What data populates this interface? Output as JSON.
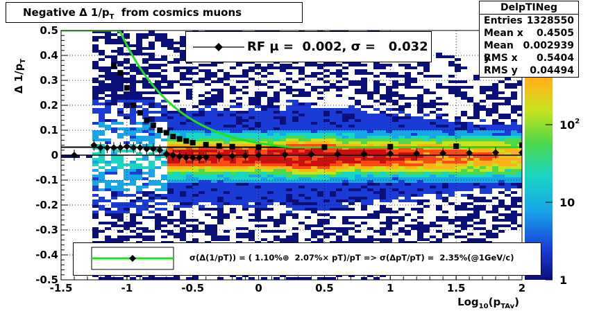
{
  "title": "Negative Δ 1/p_T  from cosmics muons",
  "stats": {
    "name": "DelpTINeg",
    "rows": [
      {
        "label": "Entries",
        "value": "1328550"
      },
      {
        "label": "Mean x",
        "value": "0.4505"
      },
      {
        "label": "Mean y",
        "value": "0.002939"
      },
      {
        "label": "RMS x",
        "value": "0.5404"
      },
      {
        "label": "RMS y",
        "value": "0.04494"
      }
    ]
  },
  "legend_top": "RF μ =  0.002, σ =   0.032",
  "legend_bottom": "σ(Δ(1/pT)) = ( 1.10%⊕  2.07%× pT)/pT => σ(ΔpT/pT) =  2.35%(@1GeV/c)",
  "colors": {
    "fit_curve": "#22dd22",
    "markers": "#000000"
  },
  "chart_data": {
    "type": "heatmap",
    "xlabel": "Log_10(p_TAv)",
    "ylabel": "Δ 1/p_T",
    "xlim": [
      -1.5,
      2
    ],
    "ylim": [
      -0.5,
      0.5
    ],
    "x_ticks": [
      "-1.5",
      "-1",
      "-0.5",
      "0",
      "0.5",
      "1",
      "1.5",
      "2"
    ],
    "y_ticks": [
      "-0.5",
      "-0.4",
      "-0.3",
      "-0.2",
      "-0.1",
      "0",
      "0.1",
      "0.2",
      "0.3",
      "0.4",
      "0.5"
    ],
    "z_log_scale": true,
    "z_ticks": [
      "1",
      "10",
      "10^2"
    ],
    "grid": true,
    "mean_profile": {
      "x": [
        -1.4,
        -1.25,
        -1.2,
        -1.15,
        -1.1,
        -1.05,
        -1.0,
        -0.95,
        -0.9,
        -0.85,
        -0.8,
        -0.75,
        -0.7,
        -0.65,
        -0.6,
        -0.55,
        -0.5,
        -0.45,
        -0.4,
        -0.3,
        -0.2,
        -0.1,
        0.0,
        0.2,
        0.4,
        0.6,
        0.8,
        1.0,
        1.2,
        1.4,
        1.6,
        1.8,
        2.0
      ],
      "y": [
        0.0,
        0.04,
        0.03,
        0.03,
        0.03,
        0.03,
        0.035,
        0.03,
        0.03,
        0.025,
        0.025,
        0.02,
        0.005,
        0.0,
        -0.005,
        -0.01,
        -0.01,
        -0.01,
        -0.008,
        -0.005,
        -0.003,
        -0.002,
        0.0,
        0.002,
        0.003,
        0.004,
        0.005,
        0.006,
        0.007,
        0.008,
        0.009,
        0.01,
        0.01
      ]
    },
    "sigma_profile": {
      "x": [
        -1.1,
        -1.05,
        -1.0,
        -0.95,
        -0.9,
        -0.85,
        -0.8,
        -0.75,
        -0.7,
        -0.65,
        -0.6,
        -0.55,
        -0.5,
        -0.4,
        -0.3,
        -0.2,
        0.0,
        0.5,
        1.0,
        1.5,
        2.0
      ],
      "y": [
        0.36,
        0.33,
        0.27,
        0.2,
        0.17,
        0.14,
        0.12,
        0.1,
        0.09,
        0.075,
        0.065,
        0.057,
        0.05,
        0.042,
        0.037,
        0.034,
        0.032,
        0.032,
        0.034,
        0.036,
        0.04
      ]
    },
    "reference_line_y": 0.032,
    "zero_line_y": 0
  }
}
